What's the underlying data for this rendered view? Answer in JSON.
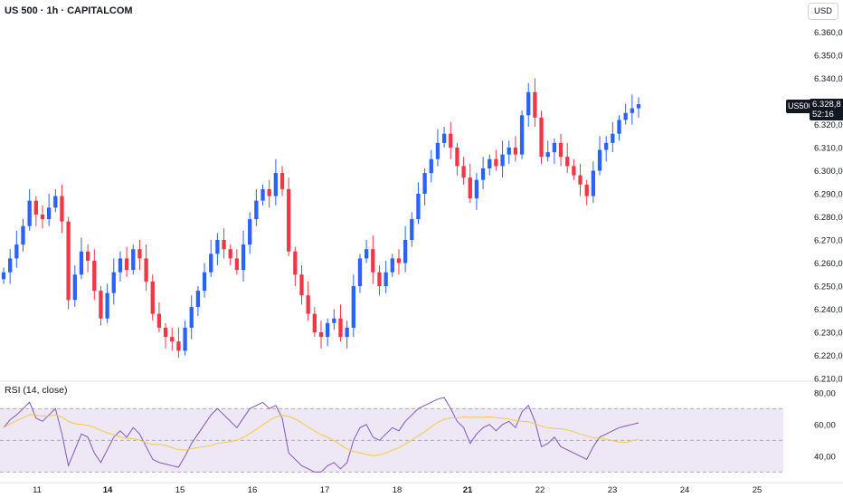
{
  "header": {
    "title": "US 500 · 1h · CAPITALCOM"
  },
  "currency": "USD",
  "price_badge": {
    "ticker": "US500",
    "price": "6.328,8",
    "countdown": "52:16"
  },
  "rsi": {
    "title": "RSI (14, close)",
    "ticks": [
      "80,00",
      "60,00",
      "40,00"
    ]
  },
  "chart_data": {
    "type": "candlestick",
    "title": "US 500 · 1h · CAPITALCOM",
    "x_ticks": [
      "11",
      "14",
      "15",
      "16",
      "17",
      "18",
      "21",
      "22",
      "23",
      "24",
      "25"
    ],
    "y_ticks": [
      "6.360,0",
      "6.350,0",
      "6.340,0",
      "6.330,0",
      "6.320,0",
      "6.310,0",
      "6.300,0",
      "6.290,0",
      "6.280,0",
      "6.270,0",
      "6.260,0",
      "6.250,0",
      "6.240,0",
      "6.230,0",
      "6.220,0",
      "6.210,0"
    ],
    "ylim": [
      6210,
      6370
    ],
    "colors": {
      "up": "#2962ff",
      "down": "#f23645",
      "rsi": "#7e57c2",
      "rsi_ma": "#f7c948",
      "band": "#ede7f6"
    },
    "close": [
      6256,
      6262,
      6268,
      6276,
      6287,
      6281,
      6279,
      6284,
      6289,
      6278,
      6244,
      6255,
      6265,
      6261,
      6248,
      6236,
      6247,
      6256,
      6262,
      6257,
      6266,
      6262,
      6252,
      6238,
      6232,
      6228,
      6226,
      6222,
      6232,
      6241,
      6248,
      6256,
      6264,
      6270,
      6266,
      6262,
      6257,
      6268,
      6279,
      6287,
      6292,
      6289,
      6299,
      6292,
      6265,
      6255,
      6246,
      6238,
      6230,
      6228,
      6234,
      6236,
      6228,
      6232,
      6250,
      6262,
      6266,
      6256,
      6250,
      6256,
      6262,
      6260,
      6270,
      6279,
      6290,
      6299,
      6305,
      6312,
      6316,
      6310,
      6302,
      6297,
      6288,
      6296,
      6301,
      6305,
      6302,
      6307,
      6310,
      6307,
      6324,
      6334,
      6323,
      6306,
      6308,
      6312,
      6306,
      6302,
      6298,
      6294,
      6289,
      6300,
      6309,
      6312,
      6316,
      6322,
      6325,
      6327,
      6328.8
    ],
    "rsi": [
      58,
      63,
      66,
      70,
      74,
      64,
      62,
      66,
      70,
      54,
      34,
      44,
      54,
      52,
      42,
      36,
      44,
      52,
      56,
      52,
      58,
      54,
      46,
      38,
      36,
      35,
      34,
      33,
      40,
      48,
      54,
      60,
      66,
      70,
      66,
      62,
      58,
      64,
      70,
      72,
      74,
      70,
      72,
      64,
      42,
      38,
      34,
      32,
      30,
      30,
      34,
      36,
      32,
      36,
      50,
      58,
      60,
      52,
      50,
      54,
      58,
      56,
      62,
      66,
      70,
      72,
      74,
      76,
      77,
      70,
      62,
      58,
      48,
      54,
      58,
      60,
      56,
      60,
      62,
      58,
      68,
      72,
      62,
      46,
      48,
      52,
      46,
      44,
      42,
      40,
      38,
      46,
      52,
      54,
      56,
      58,
      59,
      60,
      61
    ],
    "rsi_ylim": [
      25,
      85
    ]
  }
}
